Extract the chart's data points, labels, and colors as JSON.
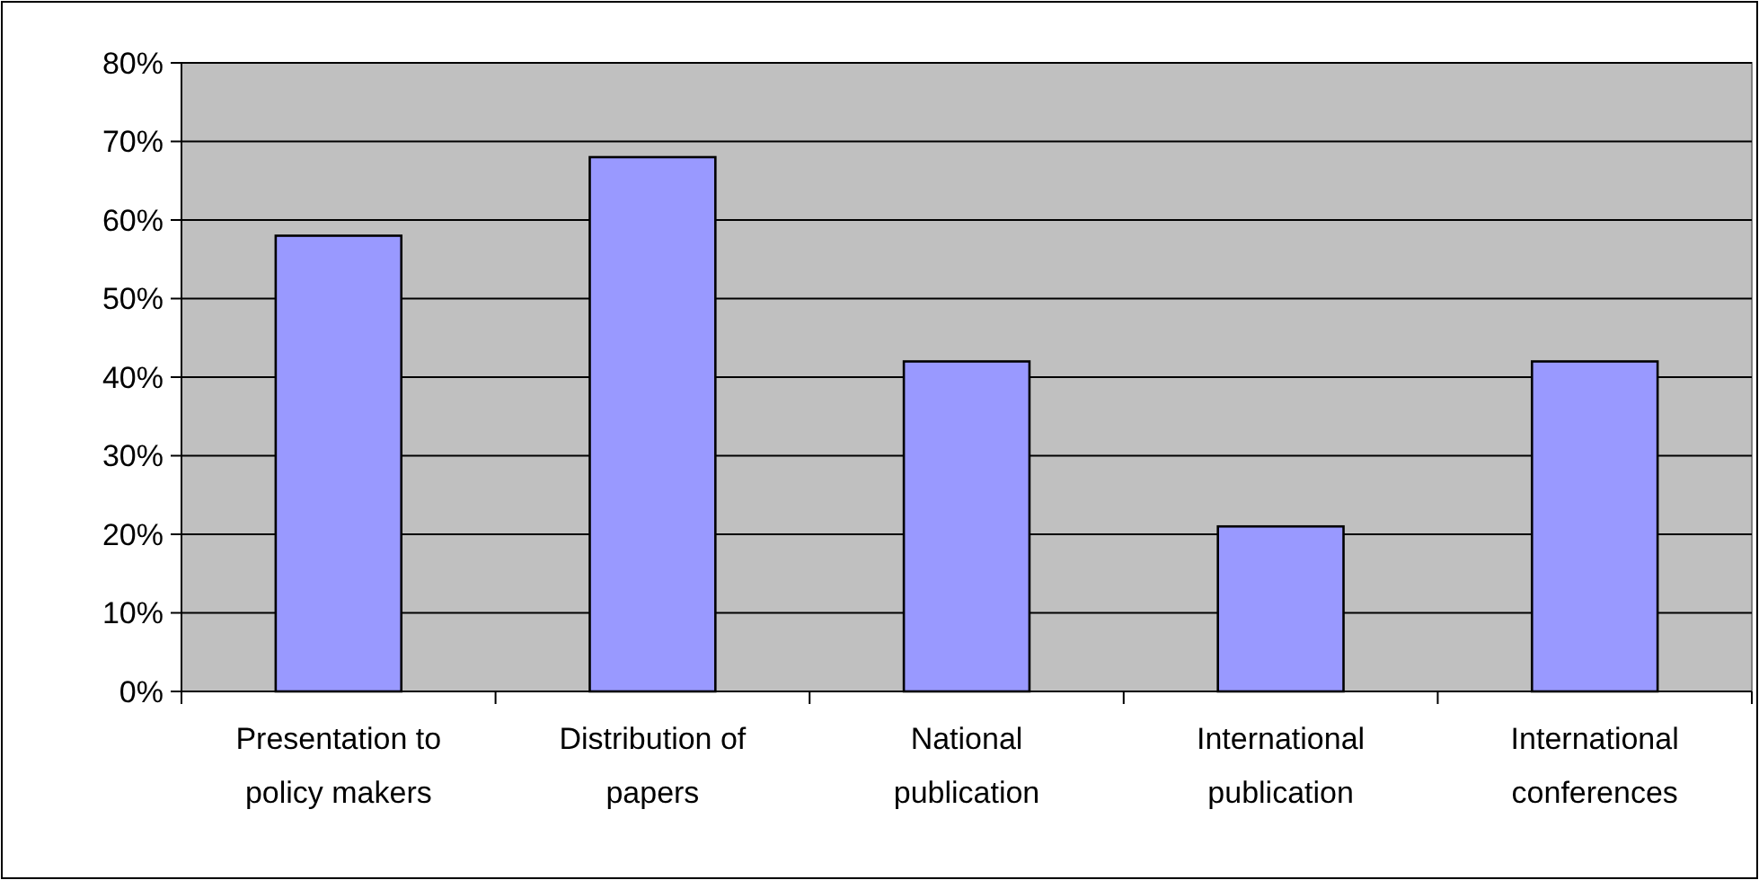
{
  "chart_data": {
    "type": "bar",
    "categories": [
      "Presentation to policy makers",
      "Distribution of papers",
      "National publication",
      "International publication",
      "International conferences"
    ],
    "values": [
      58,
      68,
      42,
      21,
      42
    ],
    "color": "#9999ff",
    "ylim": [
      0,
      80
    ],
    "yticks": [
      {
        "value": 0,
        "label": "0%"
      },
      {
        "value": 10,
        "label": "10%"
      },
      {
        "value": 20,
        "label": "20%"
      },
      {
        "value": 30,
        "label": "30%"
      },
      {
        "value": 40,
        "label": "40%"
      },
      {
        "value": 50,
        "label": "50%"
      },
      {
        "value": 60,
        "label": "60%"
      },
      {
        "value": 70,
        "label": "70%"
      },
      {
        "value": 80,
        "label": "80%"
      }
    ],
    "grid": "y"
  }
}
